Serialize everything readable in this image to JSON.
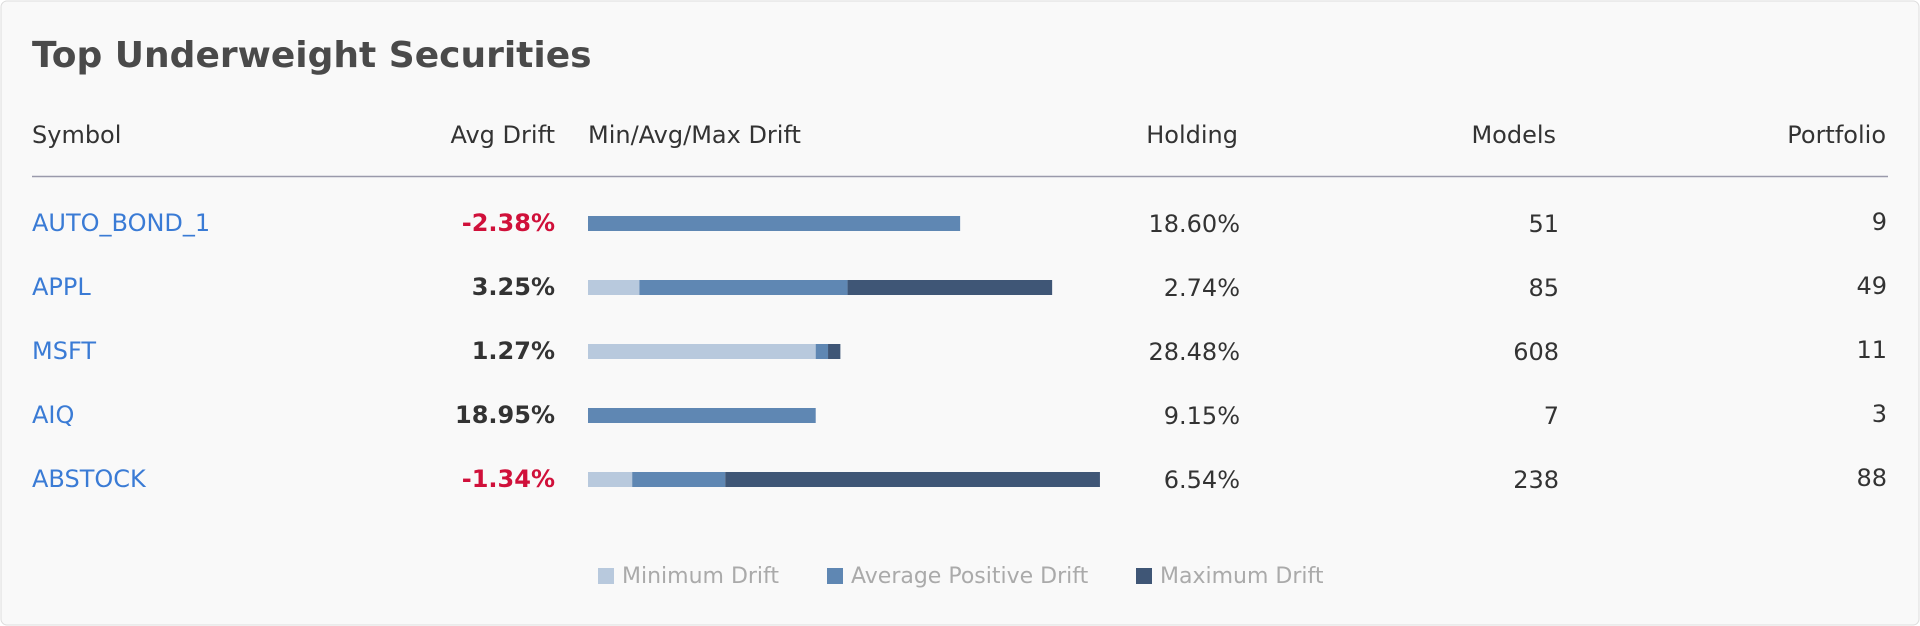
{
  "header": {
    "title": "Top Underweight Securities"
  },
  "table": {
    "columns": [
      "Symbol",
      "Avg Drift",
      "Min/Avg/Max Drift",
      "Holding",
      "Models",
      "Portfolio"
    ],
    "drift_xlim": [
      0,
      100
    ],
    "rows": [
      {
        "symbol": "AUTO_BOND_1",
        "avg_drift": "-2.38%",
        "avg_drift_color": "#d0103a",
        "drift": [
          0,
          72.4,
          0
        ],
        "holding": "18.60%",
        "models": 51,
        "portfolio": 9
      },
      {
        "symbol": "APPL",
        "avg_drift": "3.25%",
        "avg_drift_color": "#333333",
        "drift": [
          10,
          40.5,
          39.8
        ],
        "holding": "2.74%",
        "models": 85,
        "portfolio": 49
      },
      {
        "symbol": "MSFT",
        "avg_drift": "1.27%",
        "avg_drift_color": "#333333",
        "drift": [
          44.3,
          2.4,
          2.4
        ],
        "holding": "28.48%",
        "models": 608,
        "portfolio": 11
      },
      {
        "symbol": "AIQ",
        "avg_drift": "18.95%",
        "avg_drift_color": "#333333",
        "drift": [
          0,
          44.3,
          0
        ],
        "holding": "9.15%",
        "models": 7,
        "portfolio": 3
      },
      {
        "symbol": "ABSTOCK",
        "avg_drift": "-1.34%",
        "avg_drift_color": "#d0103a",
        "drift": [
          8.6,
          18.1,
          72.9
        ],
        "holding": "6.54%",
        "models": 238,
        "portfolio": 88
      }
    ]
  },
  "legend": {
    "items": [
      {
        "name": "Minimum Drift",
        "color": "#b8c9dd"
      },
      {
        "name": "Average Positive Drift",
        "color": "#5f87b3"
      },
      {
        "name": "Maximum Drift",
        "color": "#3f5676"
      }
    ]
  }
}
